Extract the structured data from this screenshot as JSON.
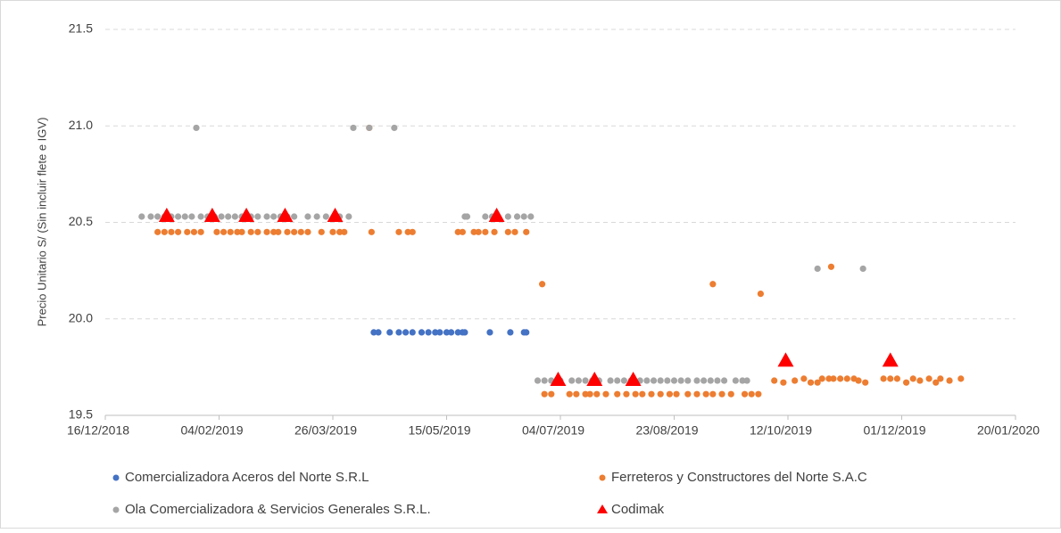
{
  "chart_data": {
    "type": "scatter",
    "y_label": "Precio Unitario S/ (Sin incluir flete e IGV)",
    "xlim": [
      "2018-12-16",
      "2020-01-20"
    ],
    "xticks": [
      {
        "value": "2018-12-16",
        "label": "16/12/2018"
      },
      {
        "value": "2019-02-04",
        "label": "04/02/2019"
      },
      {
        "value": "2019-03-26",
        "label": "26/03/2019"
      },
      {
        "value": "2019-05-15",
        "label": "15/05/2019"
      },
      {
        "value": "2019-07-04",
        "label": "04/07/2019"
      },
      {
        "value": "2019-08-23",
        "label": "23/08/2019"
      },
      {
        "value": "2019-10-12",
        "label": "12/10/2019"
      },
      {
        "value": "2019-12-01",
        "label": "01/12/2019"
      },
      {
        "value": "2020-01-20",
        "label": "20/01/2020"
      }
    ],
    "ylim": [
      19.5,
      21.5
    ],
    "yticks": [
      19.5,
      {
        "value": 20,
        "label": "20.0"
      },
      20.5,
      {
        "value": 21,
        "label": "21.0"
      },
      21.5
    ],
    "grid": true,
    "legend": "bottom",
    "series": [
      {
        "name": "Comercializadora Aceros del Norte S.R.L",
        "color": "#4472c4",
        "marker": "circle",
        "x": [
          "2019-04-13",
          "2019-04-15",
          "2019-04-20",
          "2019-04-24",
          "2019-04-27",
          "2019-04-30",
          "2019-05-04",
          "2019-05-07",
          "2019-05-10",
          "2019-05-12",
          "2019-05-15",
          "2019-05-17",
          "2019-05-20",
          "2019-05-22",
          "2019-05-23",
          "2019-06-03",
          "2019-06-12",
          "2019-06-18",
          "2019-06-19"
        ],
        "values": [
          19.93,
          19.93,
          19.93,
          19.93,
          19.93,
          19.93,
          19.93,
          19.93,
          19.93,
          19.93,
          19.93,
          19.93,
          19.93,
          19.93,
          19.93,
          19.93,
          19.93,
          19.93,
          19.93
        ]
      },
      {
        "name": "Ferreteros y Constructores del Norte S.A.C",
        "color": "#ed7d31",
        "marker": "circle",
        "x": [
          "2019-01-08",
          "2019-01-11",
          "2019-01-14",
          "2019-01-17",
          "2019-01-21",
          "2019-01-24",
          "2019-01-27",
          "2019-02-03",
          "2019-02-06",
          "2019-02-09",
          "2019-02-12",
          "2019-02-14",
          "2019-02-18",
          "2019-02-21",
          "2019-02-25",
          "2019-02-28",
          "2019-03-02",
          "2019-03-06",
          "2019-03-09",
          "2019-03-12",
          "2019-03-15",
          "2019-03-21",
          "2019-03-26",
          "2019-03-29",
          "2019-03-31",
          "2019-04-11",
          "2019-04-12",
          "2019-04-24",
          "2019-04-28",
          "2019-04-30",
          "2019-05-20",
          "2019-05-22",
          "2019-05-27",
          "2019-05-29",
          "2019-06-01",
          "2019-06-05",
          "2019-06-11",
          "2019-06-14",
          "2019-06-19",
          "2019-06-26",
          "2019-06-27",
          "2019-06-30",
          "2019-07-08",
          "2019-07-11",
          "2019-07-15",
          "2019-07-17",
          "2019-07-20",
          "2019-07-24",
          "2019-07-29",
          "2019-08-02",
          "2019-08-06",
          "2019-08-09",
          "2019-08-13",
          "2019-08-17",
          "2019-08-21",
          "2019-08-24",
          "2019-08-29",
          "2019-09-02",
          "2019-09-06",
          "2019-09-09",
          "2019-09-09",
          "2019-09-13",
          "2019-09-17",
          "2019-09-23",
          "2019-09-26",
          "2019-09-29",
          "2019-09-30",
          "2019-10-06",
          "2019-10-10",
          "2019-10-15",
          "2019-10-19",
          "2019-10-22",
          "2019-10-25",
          "2019-10-27",
          "2019-10-30",
          "2019-10-31",
          "2019-11-01",
          "2019-11-04",
          "2019-11-07",
          "2019-11-10",
          "2019-11-12",
          "2019-11-15",
          "2019-11-23",
          "2019-11-26",
          "2019-11-29",
          "2019-12-03",
          "2019-12-06",
          "2019-12-09",
          "2019-12-13",
          "2019-12-16",
          "2019-12-18",
          "2019-12-22",
          "2019-12-27"
        ],
        "values": [
          20.45,
          20.45,
          20.45,
          20.45,
          20.45,
          20.45,
          20.45,
          20.45,
          20.45,
          20.45,
          20.45,
          20.45,
          20.45,
          20.45,
          20.45,
          20.45,
          20.45,
          20.45,
          20.45,
          20.45,
          20.45,
          20.45,
          20.45,
          20.45,
          20.45,
          20.99,
          20.45,
          20.45,
          20.45,
          20.45,
          20.45,
          20.45,
          20.45,
          20.45,
          20.45,
          20.45,
          20.45,
          20.45,
          20.45,
          20.18,
          19.61,
          19.61,
          19.61,
          19.61,
          19.61,
          19.61,
          19.61,
          19.61,
          19.61,
          19.61,
          19.61,
          19.61,
          19.61,
          19.61,
          19.61,
          19.61,
          19.61,
          19.61,
          19.61,
          20.18,
          19.61,
          19.61,
          19.61,
          19.61,
          19.61,
          19.61,
          20.13,
          19.68,
          19.67,
          19.68,
          19.69,
          19.67,
          19.67,
          19.69,
          19.69,
          20.27,
          19.69,
          19.69,
          19.69,
          19.69,
          19.68,
          19.67,
          19.69,
          19.69,
          19.69,
          19.67,
          19.69,
          19.68,
          19.69,
          19.67,
          19.69,
          19.68,
          19.69
        ]
      },
      {
        "name": "Ola Comercializadora & Servicios Generales S.R.L.",
        "color": "#a5a5a5",
        "marker": "circle",
        "x": [
          "2019-01-01",
          "2019-01-05",
          "2019-01-08",
          "2019-01-11",
          "2019-01-14",
          "2019-01-17",
          "2019-01-20",
          "2019-01-23",
          "2019-01-25",
          "2019-01-27",
          "2019-01-30",
          "2019-02-02",
          "2019-02-05",
          "2019-02-08",
          "2019-02-11",
          "2019-02-14",
          "2019-02-18",
          "2019-02-21",
          "2019-02-25",
          "2019-02-28",
          "2019-03-03",
          "2019-03-06",
          "2019-03-09",
          "2019-03-15",
          "2019-03-19",
          "2019-03-23",
          "2019-03-29",
          "2019-04-02",
          "2019-04-04",
          "2019-04-11",
          "2019-04-22",
          "2019-05-23",
          "2019-05-24",
          "2019-06-01",
          "2019-06-04",
          "2019-06-11",
          "2019-06-15",
          "2019-06-18",
          "2019-06-21",
          "2019-06-24",
          "2019-06-27",
          "2019-06-30",
          "2019-07-04",
          "2019-07-09",
          "2019-07-12",
          "2019-07-15",
          "2019-07-18",
          "2019-07-21",
          "2019-07-26",
          "2019-07-29",
          "2019-08-01",
          "2019-08-04",
          "2019-08-08",
          "2019-08-11",
          "2019-08-14",
          "2019-08-17",
          "2019-08-20",
          "2019-08-23",
          "2019-08-26",
          "2019-08-29",
          "2019-09-02",
          "2019-09-05",
          "2019-09-08",
          "2019-09-11",
          "2019-09-14",
          "2019-09-19",
          "2019-09-22",
          "2019-09-24",
          "2019-10-25",
          "2019-11-14"
        ],
        "values": [
          20.53,
          20.53,
          20.53,
          20.53,
          20.53,
          20.53,
          20.53,
          20.53,
          20.99,
          20.53,
          20.53,
          20.53,
          20.53,
          20.53,
          20.53,
          20.53,
          20.53,
          20.53,
          20.53,
          20.53,
          20.53,
          20.53,
          20.53,
          20.53,
          20.53,
          20.53,
          20.53,
          20.53,
          20.99,
          20.99,
          20.99,
          20.53,
          20.53,
          20.53,
          20.53,
          20.53,
          20.53,
          20.53,
          20.53,
          19.68,
          19.68,
          19.68,
          19.68,
          19.68,
          19.68,
          19.68,
          19.68,
          19.68,
          19.68,
          19.68,
          19.68,
          19.68,
          19.68,
          19.68,
          19.68,
          19.68,
          19.68,
          19.68,
          19.68,
          19.68,
          19.68,
          19.68,
          19.68,
          19.68,
          19.68,
          19.68,
          19.68,
          19.68,
          20.26,
          20.26
        ]
      },
      {
        "name": "Codimak",
        "color": "#ff0000",
        "marker": "triangle",
        "x": [
          "2019-01-12",
          "2019-02-01",
          "2019-02-16",
          "2019-03-05",
          "2019-03-27",
          "2019-06-06",
          "2019-07-03",
          "2019-07-19",
          "2019-08-05",
          "2019-10-11",
          "2019-11-26"
        ],
        "values": [
          20.53,
          20.53,
          20.53,
          20.53,
          20.53,
          20.53,
          19.68,
          19.68,
          19.68,
          19.78,
          19.78
        ]
      }
    ]
  }
}
